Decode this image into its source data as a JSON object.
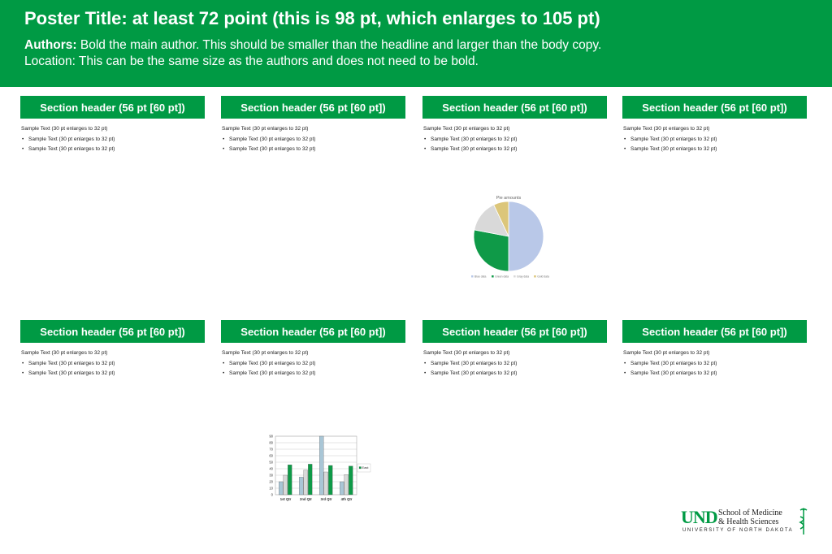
{
  "poster": {
    "title": "Poster Title: at least 72 point (this is 98 pt, which enlarges to 105 pt)",
    "authors_label": "Authors:",
    "authors_text": " Bold the main author. This should be smaller than the headline and larger than the body copy.",
    "location": "Location: This can be the same size as the authors and does not need to be bold.",
    "accent_color": "#009a44"
  },
  "sections": [
    {
      "header": "Section header (56 pt [60 pt])",
      "text": "Sample Text (30 pt enlarges to 32 pt)",
      "bullets": [
        "Sample Text (30 pt enlarges to 32 pt)",
        "Sample Text (30 pt enlarges to 32 pt)"
      ]
    },
    {
      "header": "Section header (56 pt [60 pt])",
      "text": "Sample Text (30 pt enlarges to 32 pt)",
      "bullets": [
        "Sample Text (30 pt enlarges to 32 pt)",
        "Sample Text (30 pt enlarges to 32 pt)"
      ]
    },
    {
      "header": "Section header (56 pt [60 pt])",
      "text": "Sample Text (30 pt enlarges to 32 pt)",
      "bullets": [
        "Sample Text (30 pt enlarges to 32 pt)",
        "Sample Text (30 pt enlarges to 32 pt)"
      ]
    },
    {
      "header": "Section header (56 pt [60 pt])",
      "text": "Sample Text (30 pt enlarges to 32 pt)",
      "bullets": [
        "Sample Text (30 pt enlarges to 32 pt)",
        "Sample Text (30 pt enlarges to 32 pt)"
      ]
    },
    {
      "header": "Section header (56 pt [60 pt])",
      "text": "Sample Text (30 pt enlarges to 32 pt)",
      "bullets": [
        "Sample Text (30 pt enlarges to 32 pt)",
        "Sample Text (30 pt enlarges to 32 pt)"
      ]
    },
    {
      "header": "Section header (56 pt [60 pt])",
      "text": "Sample Text (30 pt enlarges to 32 pt)",
      "bullets": [
        "Sample Text (30 pt enlarges to 32 pt)",
        "Sample Text (30 pt enlarges to 32 pt)"
      ]
    },
    {
      "header": "Section header (56 pt [60 pt])",
      "text": "Sample Text (30 pt enlarges to 32 pt)",
      "bullets": [
        "Sample Text (30 pt enlarges to 32 pt)",
        "Sample Text (30 pt enlarges to 32 pt)"
      ]
    },
    {
      "header": "Section header (56 pt [60 pt])",
      "text": "Sample Text (30 pt enlarges to 32 pt)",
      "bullets": [
        "Sample Text (30 pt enlarges to 32 pt)",
        "Sample Text (30 pt enlarges to 32 pt)"
      ]
    }
  ],
  "chart_data": [
    {
      "type": "pie",
      "title": "Pie amounts",
      "slices": [
        {
          "name": "Blue data",
          "value": 50,
          "color": "#b9c8e8"
        },
        {
          "name": "Green data",
          "value": 28,
          "color": "#0f9a48"
        },
        {
          "name": "Gray data",
          "value": 15,
          "color": "#d9d9d9"
        },
        {
          "name": "Gold data",
          "value": 7,
          "color": "#dcc67a"
        }
      ],
      "legend": "bottom"
    },
    {
      "type": "bar",
      "categories": [
        "1st Qtr",
        "2nd Qtr",
        "3rd Qtr",
        "4th Qtr"
      ],
      "series": [
        {
          "name": "",
          "values": [
            20,
            27,
            90,
            20
          ],
          "color": "#a9c6d6"
        },
        {
          "name": "",
          "values": [
            30,
            38,
            35,
            31
          ],
          "color": "#d9d9d9"
        },
        {
          "name": "East",
          "values": [
            46,
            47,
            45,
            44
          ],
          "color": "#0f9a48"
        }
      ],
      "ylim": [
        0,
        90
      ],
      "yticks": [
        0,
        10,
        20,
        30,
        40,
        50,
        60,
        70,
        80,
        90
      ],
      "legend": "right",
      "grid": true
    }
  ],
  "logo": {
    "und": "UND",
    "school_line1": "School of Medicine",
    "school_line2": "& Health Sciences",
    "university": "UNIVERSITY OF NORTH DAKOTA"
  }
}
